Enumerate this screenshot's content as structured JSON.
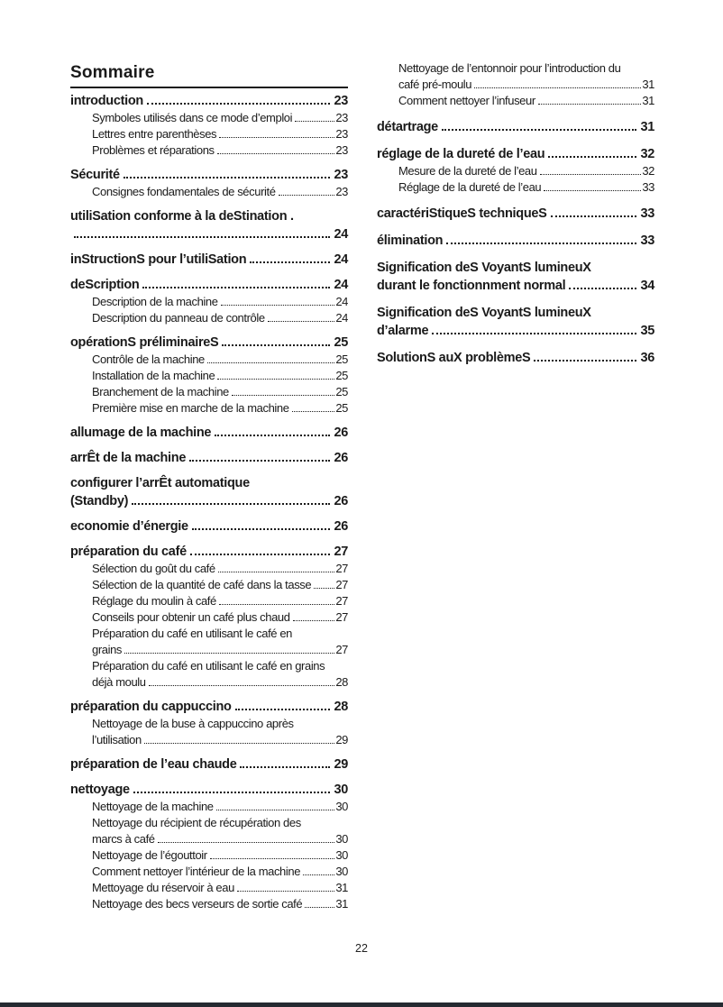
{
  "header": {
    "title": "Sommaire"
  },
  "footer": {
    "page_number": "22"
  },
  "colors": {
    "text": "#1a1a1a",
    "bottom_bar": "#252a31"
  },
  "toc": {
    "left_column": [
      {
        "style": "heading",
        "lines": [
          "introduction"
        ],
        "page": "23"
      },
      {
        "style": "sub",
        "lines": [
          "Symboles utilisés dans ce mode d’emploi"
        ],
        "page": "23"
      },
      {
        "style": "sub",
        "lines": [
          "Lettres entre parenthèses"
        ],
        "page": "23"
      },
      {
        "style": "sub",
        "lines": [
          "Problèmes et réparations"
        ],
        "page": "23"
      },
      {
        "style": "heading",
        "lines": [
          "Sécurité"
        ],
        "page": "23"
      },
      {
        "style": "sub",
        "lines": [
          "Consignes fondamentales de sécurité"
        ],
        "page": "23"
      },
      {
        "style": "heading",
        "lines": [
          "utiliSation conforme à la deStination .",
          ""
        ],
        "page": "24"
      },
      {
        "style": "heading",
        "lines": [
          "inStructionS pour l’utiliSation"
        ],
        "page": "24"
      },
      {
        "style": "heading",
        "lines": [
          "deScription"
        ],
        "page": "24"
      },
      {
        "style": "sub",
        "lines": [
          "Description de la machine"
        ],
        "page": "24"
      },
      {
        "style": "sub",
        "lines": [
          "Description du panneau de contrôle"
        ],
        "page": "24"
      },
      {
        "style": "heading",
        "lines": [
          "opérationS préliminaireS"
        ],
        "page": "25"
      },
      {
        "style": "sub",
        "lines": [
          "Contrôle de la machine"
        ],
        "page": "25"
      },
      {
        "style": "sub",
        "lines": [
          "Installation de la machine"
        ],
        "page": "25"
      },
      {
        "style": "sub",
        "lines": [
          "Branchement de la machine"
        ],
        "page": "25"
      },
      {
        "style": "sub",
        "lines": [
          "Première mise en marche de la machine"
        ],
        "page": "25"
      },
      {
        "style": "heading",
        "lines": [
          "allumage de la machine"
        ],
        "page": "26"
      },
      {
        "style": "heading",
        "lines": [
          "arrÊt de la machine"
        ],
        "page": "26"
      },
      {
        "style": "heading",
        "lines": [
          "configurer l’arrÊt automatique",
          "(Standby)"
        ],
        "page": "26"
      },
      {
        "style": "heading",
        "lines": [
          "economie d’énergie"
        ],
        "page": "26"
      },
      {
        "style": "heading",
        "lines": [
          "préparation du café"
        ],
        "page": "27"
      },
      {
        "style": "sub",
        "lines": [
          "Sélection du goût du café"
        ],
        "page": "27"
      },
      {
        "style": "sub",
        "lines": [
          "Sélection de la quantité de café dans la tasse"
        ],
        "page": "27"
      },
      {
        "style": "sub",
        "lines": [
          "Réglage du moulin à café"
        ],
        "page": "27"
      },
      {
        "style": "sub",
        "lines": [
          "Conseils pour obtenir un café plus chaud"
        ],
        "page": "27"
      },
      {
        "style": "sub",
        "lines": [
          "Préparation du café en utilisant le café en",
          "grains"
        ],
        "page": "27"
      },
      {
        "style": "sub",
        "lines": [
          "Préparation du café en utilisant le café en grains",
          "déjà moulu"
        ],
        "page": "28"
      },
      {
        "style": "heading",
        "lines": [
          "préparation du cappuccino"
        ],
        "page": "28"
      },
      {
        "style": "sub",
        "lines": [
          "Nettoyage de la buse à cappuccino après",
          "l’utilisation"
        ],
        "page": "29"
      },
      {
        "style": "heading",
        "lines": [
          "préparation de l’eau chaude"
        ],
        "page": "29"
      },
      {
        "style": "heading",
        "lines": [
          "nettoyage"
        ],
        "page": "30"
      },
      {
        "style": "sub",
        "lines": [
          "Nettoyage de la machine"
        ],
        "page": "30"
      },
      {
        "style": "sub",
        "lines": [
          "Nettoyage du récipient de récupération des",
          "marcs à café"
        ],
        "page": "30"
      },
      {
        "style": "sub",
        "lines": [
          "Nettoyage de l’égouttoir"
        ],
        "page": "30"
      },
      {
        "style": "sub",
        "lines": [
          "Comment nettoyer l’intérieur de la machine"
        ],
        "page": "30"
      },
      {
        "style": "sub",
        "lines": [
          "Mettoyage du réservoir à eau"
        ],
        "page": "31"
      },
      {
        "style": "sub",
        "lines": [
          "Nettoyage des becs verseurs de sortie café"
        ],
        "page": "31"
      }
    ],
    "right_column": [
      {
        "style": "sub",
        "lines": [
          "Nettoyage de l’entonnoir pour l’introduction du",
          "café pré-moulu"
        ],
        "page": "31"
      },
      {
        "style": "sub",
        "lines": [
          "Comment nettoyer l’infuseur"
        ],
        "page": "31"
      },
      {
        "style": "heading",
        "lines": [
          "détartrage"
        ],
        "page": "31"
      },
      {
        "style": "heading",
        "lines": [
          "réglage de la dureté de l’eau"
        ],
        "page": "32"
      },
      {
        "style": "sub",
        "lines": [
          "Mesure de la dureté de l’eau"
        ],
        "page": "32"
      },
      {
        "style": "sub",
        "lines": [
          "Réglage de la dureté de l’eau"
        ],
        "page": "33"
      },
      {
        "style": "heading",
        "lines": [
          "caractériStiqueS techniqueS"
        ],
        "page": "33"
      },
      {
        "style": "heading",
        "lines": [
          "élimination"
        ],
        "page": "33"
      },
      {
        "style": "heading",
        "lines": [
          "Signification deS VoyantS lumineuX",
          "durant le fonctionnment normal"
        ],
        "page": "34"
      },
      {
        "style": "heading",
        "lines": [
          "Signification deS VoyantS lumineuX",
          "d’alarme"
        ],
        "page": "35"
      },
      {
        "style": "heading",
        "lines": [
          "SolutionS auX problèmeS"
        ],
        "page": "36"
      }
    ]
  }
}
